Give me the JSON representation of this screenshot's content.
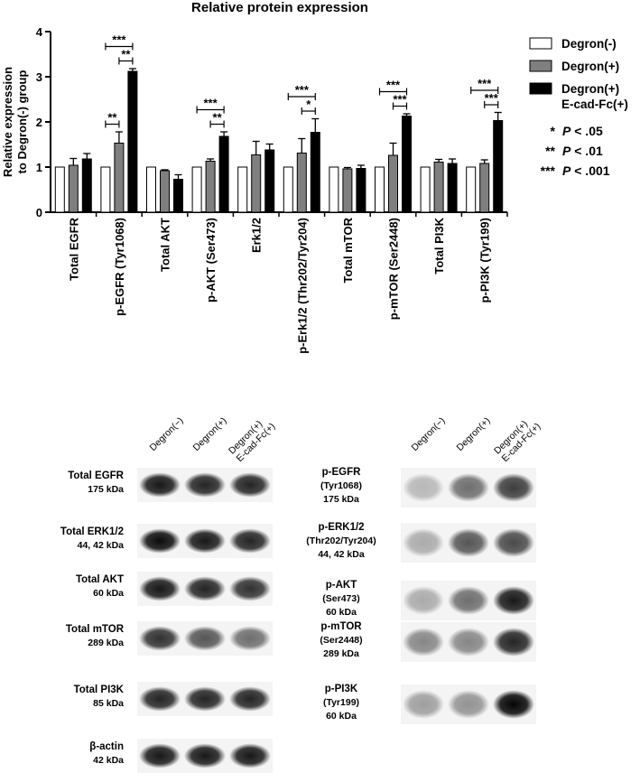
{
  "chart_data": {
    "type": "bar",
    "title": "Relative protein expression",
    "ylabel": [
      "Relative expression",
      "to Degron(-) group"
    ],
    "ylim": [
      0,
      4
    ],
    "yticks": [
      0,
      1,
      2,
      3,
      4
    ],
    "categories": [
      "Total EGFR",
      "p-EGFR (Tyr1068)",
      "Total AKT",
      "p-AKT (Ser473)",
      "Erk1/2",
      "p-Erk1/2 (Thr202/Tyr204)",
      "Total mTOR",
      "p-mTOR (Ser2448)",
      "Total PI3K",
      "p-PI3K (Tyr199)"
    ],
    "series": [
      {
        "name": "Degron(-)",
        "color": "#ffffff",
        "values": [
          1,
          1,
          1,
          1,
          1,
          1,
          1,
          1,
          1,
          1
        ],
        "errors": [
          0,
          0,
          0,
          0,
          0,
          0,
          0,
          0,
          0,
          0
        ]
      },
      {
        "name": "Degron(+)",
        "color": "#7f7f7f",
        "values": [
          1.04,
          1.53,
          0.92,
          1.13,
          1.27,
          1.31,
          0.96,
          1.26,
          1.11,
          1.08
        ],
        "errors": [
          0.15,
          0.25,
          0.02,
          0.05,
          0.3,
          0.32,
          0.03,
          0.27,
          0.06,
          0.08
        ]
      },
      {
        "name": "Degron(+)\nE-cad-Fc(+)",
        "color": "#000000",
        "values": [
          1.18,
          3.12,
          0.73,
          1.68,
          1.38,
          1.77,
          0.97,
          2.13,
          1.08,
          2.03
        ],
        "errors": [
          0.12,
          0.06,
          0.1,
          0.1,
          0.13,
          0.3,
          0.07,
          0.05,
          0.1,
          0.18
        ]
      }
    ],
    "significance": [
      {
        "category": 1,
        "from": 0,
        "to": 1,
        "label": "**"
      },
      {
        "category": 1,
        "from": 0,
        "to": 2,
        "label": "***"
      },
      {
        "category": 1,
        "from": 1,
        "to": 2,
        "label": "**"
      },
      {
        "category": 3,
        "from": 0,
        "to": 2,
        "label": "***"
      },
      {
        "category": 3,
        "from": 1,
        "to": 2,
        "label": "**"
      },
      {
        "category": 5,
        "from": 0,
        "to": 2,
        "label": "***"
      },
      {
        "category": 5,
        "from": 1,
        "to": 2,
        "label": "*"
      },
      {
        "category": 7,
        "from": 0,
        "to": 2,
        "label": "***"
      },
      {
        "category": 7,
        "from": 1,
        "to": 2,
        "label": "***"
      },
      {
        "category": 9,
        "from": 0,
        "to": 2,
        "label": "***"
      },
      {
        "category": 9,
        "from": 1,
        "to": 2,
        "label": "***"
      }
    ],
    "significance_key": [
      {
        "stars": "*",
        "text": "< .05"
      },
      {
        "stars": "**",
        "text": "< .01"
      },
      {
        "stars": "***",
        "text": "< .001"
      }
    ],
    "p_symbol": "P",
    "legend_position": "top-right",
    "grid": false
  },
  "blot": {
    "lanes": [
      "Degron(−)",
      "Degron(+)",
      "Degron(+)\nE-cad-Fc(+)"
    ],
    "left": [
      {
        "name": "Total EGFR",
        "kda": "175 kDa",
        "intensity": [
          0.9,
          0.85,
          0.85
        ]
      },
      {
        "name": "Total ERK1/2",
        "kda": "44, 42 kDa",
        "intensity": [
          0.95,
          0.9,
          0.85
        ]
      },
      {
        "name": "Total AKT",
        "kda": "60 kDa",
        "intensity": [
          0.9,
          0.85,
          0.8
        ]
      },
      {
        "name": "Total mTOR",
        "kda": "289 kDa",
        "intensity": [
          0.8,
          0.65,
          0.55
        ]
      },
      {
        "name": "Total PI3K",
        "kda": "85 kDa",
        "intensity": [
          0.85,
          0.85,
          0.85
        ]
      },
      {
        "name": "β-actin",
        "kda": "42 kDa",
        "intensity": [
          0.9,
          0.9,
          0.9
        ]
      }
    ],
    "right": [
      {
        "name": "p-EGFR",
        "site": "(Tyr1068)",
        "kda": "175 kDa",
        "intensity": [
          0.25,
          0.55,
          0.75
        ]
      },
      {
        "name": "p-ERK1/2",
        "site": "(Thr202/Tyr204)",
        "kda": "44, 42 kDa",
        "intensity": [
          0.3,
          0.65,
          0.7
        ]
      },
      {
        "name": "p-AKT",
        "site": "(Ser473)",
        "kda": "60 kDa",
        "intensity": [
          0.3,
          0.55,
          0.9
        ]
      },
      {
        "name": "p-mTOR",
        "site": "(Ser2448)",
        "kda": "289 kDa",
        "intensity": [
          0.45,
          0.45,
          0.85
        ]
      },
      {
        "name": "p-PI3K",
        "site": "(Tyr199)",
        "kda": "60 kDa",
        "intensity": [
          0.35,
          0.4,
          0.98
        ]
      }
    ]
  }
}
